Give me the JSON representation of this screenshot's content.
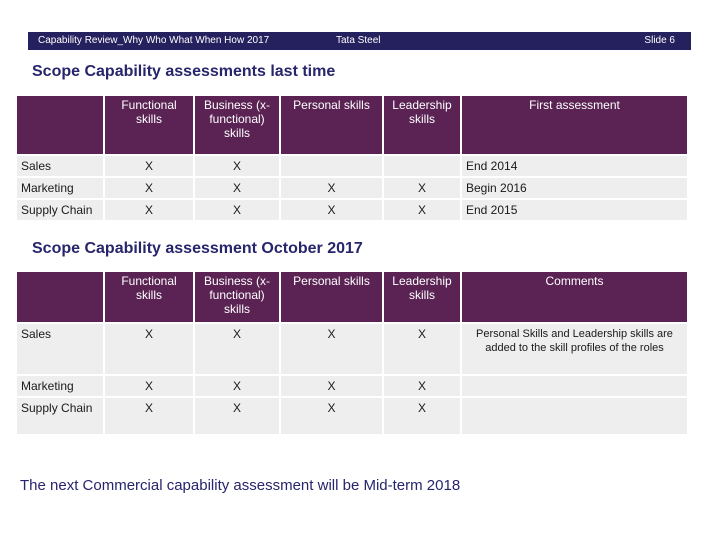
{
  "header": {
    "left": "Capability Review_Why Who What When How 2017",
    "center": "Tata Steel",
    "right": "Slide 6"
  },
  "section1": {
    "title": "Scope Capability assessments last time",
    "headers": [
      "",
      "Functional skills",
      "Business (x-functional) skills",
      "Personal skills",
      "Leadership skills",
      "First assessment"
    ],
    "rows": [
      [
        "Sales",
        "X",
        "X",
        "",
        "",
        "End 2014"
      ],
      [
        "Marketing",
        "X",
        "X",
        "X",
        "X",
        "Begin 2016"
      ],
      [
        "Supply Chain",
        "X",
        "X",
        "X",
        "X",
        "End 2015"
      ]
    ]
  },
  "section2": {
    "title": "Scope Capability assessment October  2017",
    "headers": [
      "",
      "Functional skills",
      "Business (x-functional) skills",
      "Personal skills",
      "Leadership skills",
      "Comments"
    ],
    "rows": [
      [
        "Sales",
        "X",
        "X",
        "X",
        "X",
        "Personal Skills and Leadership skills are added to the skill profiles of the roles"
      ],
      [
        "Marketing",
        "X",
        "X",
        "X",
        "X",
        ""
      ],
      [
        "Supply Chain",
        "X",
        "X",
        "X",
        "X",
        ""
      ]
    ]
  },
  "footer": "The next Commercial capability assessment will be Mid-term 2018"
}
